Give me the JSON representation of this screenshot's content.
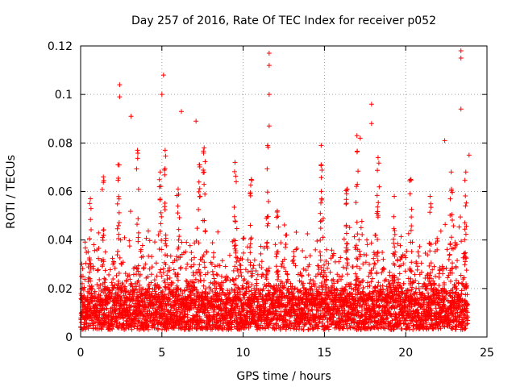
{
  "chart_data": {
    "type": "scatter",
    "title": "Day 257 of 2016, Rate Of TEC Index for receiver p052",
    "xlabel": "GPS time / hours",
    "ylabel": "ROTI / TECUs",
    "xlim": [
      0,
      25
    ],
    "ylim": [
      0,
      0.12
    ],
    "xticks": [
      0,
      5,
      10,
      15,
      20,
      25
    ],
    "xtick_labels": [
      "0",
      "5",
      "10",
      "15",
      "20",
      "25"
    ],
    "yticks": [
      0,
      0.02,
      0.04,
      0.06,
      0.08,
      0.1,
      0.12
    ],
    "ytick_labels": [
      "0",
      "0.02",
      "0.04",
      "0.06",
      "0.08",
      "0.1",
      "0.12"
    ],
    "grid": true,
    "marker": "plus",
    "color": "#ff0000",
    "notable_points": [
      {
        "x": 2.4,
        "y": 0.104
      },
      {
        "x": 2.4,
        "y": 0.099
      },
      {
        "x": 3.1,
        "y": 0.091
      },
      {
        "x": 5.1,
        "y": 0.108
      },
      {
        "x": 5.0,
        "y": 0.1
      },
      {
        "x": 6.2,
        "y": 0.093
      },
      {
        "x": 7.1,
        "y": 0.089
      },
      {
        "x": 11.6,
        "y": 0.117
      },
      {
        "x": 11.6,
        "y": 0.112
      },
      {
        "x": 11.6,
        "y": 0.1
      },
      {
        "x": 11.6,
        "y": 0.087
      },
      {
        "x": 14.8,
        "y": 0.079
      },
      {
        "x": 17.9,
        "y": 0.096
      },
      {
        "x": 17.9,
        "y": 0.088
      },
      {
        "x": 17.2,
        "y": 0.082
      },
      {
        "x": 23.4,
        "y": 0.118
      },
      {
        "x": 23.4,
        "y": 0.115
      },
      {
        "x": 23.4,
        "y": 0.094
      },
      {
        "x": 22.4,
        "y": 0.081
      },
      {
        "x": 23.9,
        "y": 0.075
      }
    ],
    "clusters": [
      {
        "x": 0.6,
        "y": 0.057
      },
      {
        "x": 1.4,
        "y": 0.066
      },
      {
        "x": 2.3,
        "y": 0.071
      },
      {
        "x": 3.5,
        "y": 0.077
      },
      {
        "x": 4.9,
        "y": 0.068
      },
      {
        "x": 5.2,
        "y": 0.077
      },
      {
        "x": 6.0,
        "y": 0.061
      },
      {
        "x": 7.3,
        "y": 0.071
      },
      {
        "x": 7.6,
        "y": 0.078
      },
      {
        "x": 9.5,
        "y": 0.072
      },
      {
        "x": 10.5,
        "y": 0.065
      },
      {
        "x": 11.5,
        "y": 0.079
      },
      {
        "x": 12.1,
        "y": 0.052
      },
      {
        "x": 14.8,
        "y": 0.071
      },
      {
        "x": 16.4,
        "y": 0.061
      },
      {
        "x": 17.0,
        "y": 0.083
      },
      {
        "x": 18.3,
        "y": 0.074
      },
      {
        "x": 19.3,
        "y": 0.058
      },
      {
        "x": 20.3,
        "y": 0.065
      },
      {
        "x": 21.5,
        "y": 0.058
      },
      {
        "x": 22.8,
        "y": 0.068
      },
      {
        "x": 23.7,
        "y": 0.068
      }
    ],
    "baseline_range": [
      0.003,
      0.025
    ],
    "sampling_interval_hours": 0.02
  }
}
